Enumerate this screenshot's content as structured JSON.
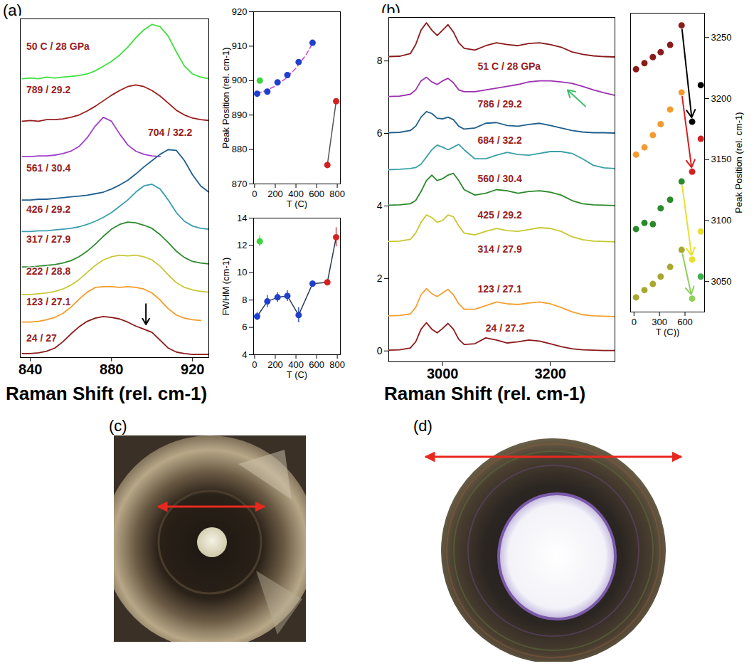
{
  "chart_data": [
    {
      "panel": "(a)",
      "type": "line",
      "x_label": "Raman Shift (rel. cm-1)",
      "x": [
        836,
        840,
        844,
        848,
        852,
        856,
        860,
        864,
        868,
        872,
        876,
        880,
        884,
        888,
        892,
        896,
        900,
        904,
        908,
        912,
        916,
        920,
        924,
        928
      ],
      "xlim": [
        835,
        928
      ],
      "xticks": [
        840,
        880,
        920
      ],
      "ylim": [
        0,
        43
      ],
      "tick_labels": "x",
      "series": [
        {
          "name": "50 C / 28 GPa",
          "color": "#3ee03e",
          "label_x": 838,
          "label_y": 39.5,
          "values": [
            35.4,
            35.5,
            35.4,
            35.6,
            35.5,
            35.6,
            35.7,
            35.8,
            36.0,
            36.4,
            37.0,
            37.6,
            38.4,
            39.4,
            40.6,
            41.6,
            42.3,
            42.0,
            40.8,
            38.8,
            37.0,
            36.0,
            35.6,
            35.4
          ]
        },
        {
          "name": "789 / 29.2",
          "color": "#9a1c1c",
          "label_x": 838,
          "label_y": 34,
          "values": [
            30.0,
            30.1,
            30.0,
            30.2,
            30.2,
            30.3,
            30.5,
            30.8,
            31.3,
            31.9,
            32.6,
            33.3,
            33.9,
            34.4,
            34.6,
            34.4,
            33.9,
            33.2,
            32.3,
            31.4,
            30.8,
            30.4,
            30.2,
            30.1
          ]
        },
        {
          "name": "704 / 32.2",
          "color": "#a040c8",
          "label_x": 898,
          "label_y": 28.5,
          "values": [
            25.5,
            25.5,
            25.6,
            25.6,
            25.7,
            25.9,
            26.2,
            26.8,
            27.9,
            29.4,
            30.5,
            30.0,
            28.4,
            27.0,
            26.2,
            25.8,
            25.6,
            25.5,
            null,
            null,
            null,
            null,
            null,
            null
          ]
        },
        {
          "name": "561 / 30.4",
          "color": "#1f5f8f",
          "label_x": 838,
          "label_y": 24,
          "values": [
            20.0,
            20.0,
            20.1,
            20.1,
            20.2,
            20.3,
            20.4,
            20.5,
            20.6,
            20.8,
            21.0,
            21.4,
            21.9,
            22.5,
            23.3,
            24.2,
            25.0,
            25.8,
            26.4,
            26.3,
            25.0,
            23.2,
            21.8,
            21.0
          ]
        },
        {
          "name": "426 / 29.2",
          "color": "#3a9fae",
          "label_x": 838,
          "label_y": 18.8,
          "values": [
            16.0,
            16.0,
            16.1,
            16.1,
            16.2,
            16.3,
            16.4,
            16.6,
            16.9,
            17.3,
            17.8,
            18.4,
            19.2,
            20.0,
            21.0,
            21.8,
            22.0,
            21.4,
            20.0,
            18.4,
            17.3,
            16.7,
            16.4,
            16.3
          ]
        },
        {
          "name": "317 / 27.9",
          "color": "#2e8b2e",
          "label_x": 838,
          "label_y": 15.0,
          "values": [
            11.5,
            11.5,
            11.6,
            11.7,
            11.8,
            12.0,
            12.3,
            12.8,
            13.5,
            14.4,
            15.4,
            16.3,
            16.9,
            17.2,
            17.1,
            16.8,
            16.4,
            15.6,
            14.6,
            13.5,
            12.7,
            12.2,
            12.0,
            11.9
          ]
        },
        {
          "name": "222 / 28.8",
          "color": "#c8c83a",
          "label_x": 838,
          "label_y": 10.9,
          "values": [
            8.0,
            8.0,
            8.1,
            8.2,
            8.4,
            8.7,
            9.2,
            9.9,
            10.8,
            11.7,
            12.4,
            12.8,
            13.0,
            12.9,
            13.0,
            12.8,
            12.4,
            11.6,
            10.5,
            9.5,
            8.9,
            8.6,
            8.4,
            8.3
          ]
        },
        {
          "name": "123 / 27.1",
          "color": "#f59a2a",
          "label_x": 838,
          "label_y": 7.0,
          "values": [
            4.5,
            4.5,
            4.6,
            4.8,
            5.1,
            5.6,
            6.4,
            7.4,
            8.3,
            8.9,
            9.0,
            9.0,
            8.9,
            9.0,
            8.9,
            8.7,
            8.2,
            7.3,
            6.2,
            5.4,
            5.0,
            4.8,
            4.7,
            null
          ]
        },
        {
          "name": "24 / 27",
          "color": "#8b1a1a",
          "label_x": 838,
          "label_y": 2.4,
          "values": [
            0.5,
            0.5,
            0.6,
            0.8,
            1.2,
            2.0,
            3.0,
            3.9,
            4.6,
            5.0,
            5.2,
            5.1,
            4.9,
            4.5,
            4.0,
            3.6,
            3.2,
            2.2,
            1.2,
            0.7,
            0.5,
            0.4,
            0.4,
            0.4
          ]
        }
      ],
      "annotations": [
        {
          "type": "arrow",
          "x1": 897,
          "y1": 6.8,
          "x2": 897,
          "y2": 4.2,
          "color": "#000000"
        }
      ]
    },
    {
      "panel": "(a)",
      "type": "scatter",
      "x_label": "T (C)",
      "y_label": "Peak Position (rel. cm-1)",
      "xlim": [
        -10,
        830
      ],
      "xticks": [
        0,
        200,
        400,
        600,
        800
      ],
      "ylim": [
        870,
        920
      ],
      "yticks": [
        870,
        880,
        890,
        900,
        910,
        920
      ],
      "series": [
        {
          "type": "line",
          "line_style": "dashed",
          "color": "#cc44cc",
          "x": [
            24,
            100,
            200,
            300,
            400,
            500,
            561
          ],
          "values": [
            896.3,
            897.0,
            898.4,
            900.6,
            903.6,
            907.6,
            910.8
          ]
        },
        {
          "type": "scatter",
          "marker": "circle",
          "color": "#1f3fcf",
          "x": [
            24,
            123,
            222,
            317,
            426,
            561
          ],
          "values": [
            896.2,
            896.8,
            899.5,
            901.6,
            905.4,
            911.0
          ]
        },
        {
          "type": "scatter",
          "marker": "circle",
          "color": "#3ed43e",
          "x": [
            50
          ],
          "values": [
            900
          ]
        },
        {
          "type": "line",
          "marker": "circle",
          "color": "#555555",
          "colors": [
            "#d42020",
            "#d42020"
          ],
          "x": [
            704,
            789
          ],
          "values": [
            875.5,
            894
          ]
        }
      ]
    },
    {
      "panel": "(a)",
      "type": "scatter",
      "x_label": "T (C)",
      "y_label": "FWHM (cm-1)",
      "xlim": [
        -10,
        830
      ],
      "xticks": [
        0,
        200,
        400,
        600,
        800
      ],
      "ylim": [
        4,
        14
      ],
      "yticks": [
        4,
        6,
        8,
        10,
        12,
        14
      ],
      "series": [
        {
          "type": "line",
          "marker": "circle",
          "color": "#2c3e50",
          "colors": [
            "#1f3fcf",
            "#1f3fcf",
            "#1f3fcf",
            "#1f3fcf",
            "#1f3fcf",
            "#1f3fcf",
            "#d42020",
            "#d42020"
          ],
          "x": [
            24,
            123,
            222,
            317,
            426,
            561,
            704,
            789
          ],
          "values": [
            6.8,
            7.9,
            8.2,
            8.3,
            6.9,
            9.2,
            9.3,
            12.6
          ],
          "errors": [
            0.3,
            0.45,
            0.35,
            0.4,
            0.55,
            0.2,
            0.15,
            0.7
          ]
        },
        {
          "type": "scatter",
          "marker": "circle",
          "color": "#3ed43e",
          "x": [
            50
          ],
          "values": [
            12.3
          ],
          "errors": [
            0.4
          ]
        }
      ]
    },
    {
      "panel": "(b)",
      "type": "line",
      "x_label": "Raman Shift (rel. cm-1)",
      "x": [
        2900,
        2920,
        2940,
        2950,
        2960,
        2970,
        2980,
        2990,
        3000,
        3010,
        3020,
        3030,
        3040,
        3060,
        3080,
        3100,
        3120,
        3140,
        3160,
        3180,
        3200,
        3220,
        3240,
        3260,
        3280,
        3300,
        3320
      ],
      "xlim": [
        2900,
        3320
      ],
      "xticks": [
        3000,
        3200
      ],
      "ylim": [
        -0.3,
        9.2
      ],
      "yticks": [
        0,
        2,
        4,
        6,
        8
      ],
      "series": [
        {
          "name": "51 C / 28 GPa",
          "color": "#8b1a1a",
          "label_x": 3065,
          "label_y": 7.85,
          "values": [
            8.12,
            8.13,
            8.2,
            8.45,
            8.85,
            9.05,
            8.85,
            8.7,
            8.85,
            9.0,
            8.8,
            8.5,
            8.35,
            8.3,
            8.42,
            8.5,
            8.45,
            8.42,
            8.48,
            8.5,
            8.45,
            8.38,
            8.25,
            8.18,
            8.14,
            8.12,
            8.11
          ]
        },
        {
          "name": "786 / 29.2",
          "color": "#9b30b0",
          "label_x": 3065,
          "label_y": 6.8,
          "values": [
            7.02,
            7.03,
            7.08,
            7.2,
            7.45,
            7.55,
            7.42,
            7.35,
            7.45,
            7.52,
            7.4,
            7.2,
            7.15,
            7.15,
            7.2,
            7.25,
            7.3,
            7.35,
            7.42,
            7.45,
            7.45,
            7.42,
            7.38,
            7.3,
            7.2,
            7.12,
            7.05
          ]
        },
        {
          "name": "684 / 32.2",
          "color": "#1f5f8b",
          "label_x": 3065,
          "label_y": 5.8,
          "values": [
            6.02,
            6.03,
            6.08,
            6.2,
            6.45,
            6.6,
            6.55,
            6.42,
            6.4,
            6.45,
            6.38,
            6.2,
            6.12,
            6.15,
            6.28,
            6.3,
            6.22,
            6.2,
            6.25,
            6.28,
            6.22,
            6.15,
            6.08,
            6.04,
            6.02,
            6.02,
            6.01
          ]
        },
        {
          "name": "560 / 30.4",
          "color": "#3aa0a8",
          "label_x": 3065,
          "label_y": 4.75,
          "values": [
            5.0,
            5.01,
            5.03,
            5.06,
            5.15,
            5.35,
            5.55,
            5.68,
            5.62,
            5.55,
            5.62,
            5.7,
            5.55,
            5.3,
            5.3,
            5.4,
            5.48,
            5.42,
            5.4,
            5.45,
            5.5,
            5.5,
            5.45,
            5.3,
            5.12,
            5.05,
            5.03
          ]
        },
        {
          "name": "425 / 29.2",
          "color": "#2a8a2a",
          "label_x": 3065,
          "label_y": 3.75,
          "values": [
            4.02,
            4.03,
            4.06,
            4.15,
            4.4,
            4.7,
            4.85,
            4.7,
            4.75,
            4.85,
            4.9,
            4.7,
            4.45,
            4.3,
            4.35,
            4.45,
            4.42,
            4.35,
            4.4,
            4.42,
            4.38,
            4.3,
            4.15,
            4.06,
            4.03,
            4.02,
            4.01
          ]
        },
        {
          "name": "314 / 27.9",
          "color": "#c8c832",
          "label_x": 3065,
          "label_y": 2.8,
          "values": [
            3.02,
            3.03,
            3.08,
            3.25,
            3.55,
            3.75,
            3.68,
            3.55,
            3.6,
            3.75,
            3.7,
            3.45,
            3.25,
            3.2,
            3.3,
            3.38,
            3.32,
            3.3,
            3.35,
            3.4,
            3.38,
            3.3,
            3.15,
            3.07,
            3.03,
            3.02,
            3.01
          ]
        },
        {
          "name": "123 / 27.1",
          "color": "#f5a030",
          "label_x": 3065,
          "label_y": 1.7,
          "values": [
            0.97,
            0.98,
            1.02,
            1.2,
            1.55,
            1.72,
            1.58,
            1.5,
            1.6,
            1.7,
            1.55,
            1.3,
            1.15,
            1.15,
            1.25,
            1.35,
            1.3,
            1.28,
            1.32,
            1.35,
            1.3,
            1.2,
            1.08,
            1.0,
            0.97,
            0.96,
            0.95
          ]
        },
        {
          "name": "24 / 27.2",
          "color": "#8b1a1a",
          "label_x": 3080,
          "label_y": 0.62,
          "values": [
            0.02,
            0.03,
            0.08,
            0.25,
            0.6,
            0.78,
            0.6,
            0.5,
            0.62,
            0.76,
            0.6,
            0.32,
            0.18,
            0.2,
            0.36,
            0.3,
            0.22,
            0.25,
            0.3,
            0.27,
            0.2,
            0.12,
            0.06,
            0.03,
            0.02,
            0.01,
            0.01
          ]
        }
      ],
      "annotations": [
        {
          "type": "arrow",
          "x1": 3265,
          "y1": 6.75,
          "x2": 3232,
          "y2": 7.2,
          "color": "#3cbf6a"
        }
      ]
    },
    {
      "panel": "(b)",
      "type": "scatter",
      "x_label": "T (C))",
      "y_label": "Peak Position (rel. cm-1)",
      "xlim": [
        -40,
        830
      ],
      "xticks": [
        0,
        300,
        600
      ],
      "ylim": [
        3025,
        3270
      ],
      "yticks": [
        3050,
        3100,
        3150,
        3200,
        3250
      ],
      "series": [
        {
          "type": "scatter",
          "marker": "circle",
          "color": "#8b1a1a",
          "colors": [
            "#8b1a1a",
            "#8b1a1a",
            "#8b1a1a",
            "#8b1a1a",
            "#8b1a1a",
            "#8b1a1a",
            "#000000",
            "#000000"
          ],
          "x": [
            24,
            123,
            222,
            314,
            425,
            560,
            684,
            786
          ],
          "values": [
            3224,
            3229,
            3234,
            3238,
            3244,
            3260,
            3181,
            3211
          ]
        },
        {
          "type": "scatter",
          "marker": "circle",
          "color": "#f59a30",
          "colors": [
            "#f59a30",
            "#f59a30",
            "#f59a30",
            "#f59a30",
            "#f59a30",
            "#f59a30",
            "#d42020",
            "#d42020"
          ],
          "x": [
            24,
            123,
            222,
            314,
            425,
            560,
            684,
            786
          ],
          "values": [
            3154,
            3160,
            3170,
            3179,
            3191,
            3205,
            3140,
            3167
          ]
        },
        {
          "type": "scatter",
          "marker": "circle",
          "color": "#2a8a2a",
          "colors": [
            "#2a8a2a",
            "#2a8a2a",
            "#2a8a2a",
            "#2a8a2a",
            "#2a8a2a",
            "#2a8a2a",
            "#e8e030",
            "#e8e030"
          ],
          "x": [
            24,
            123,
            222,
            314,
            425,
            560,
            684,
            786
          ],
          "values": [
            3093,
            3098,
            3097,
            3110,
            3117,
            3132,
            3068,
            3091
          ]
        },
        {
          "type": "scatter",
          "marker": "circle",
          "color": "#a8a830",
          "colors": [
            "#a8a830",
            "#a8a830",
            "#a8a830",
            "#a8a830",
            "#a8a830",
            "#a8a830",
            "#8fd05a",
            "#3cb04c"
          ],
          "x": [
            24,
            123,
            222,
            314,
            425,
            560,
            684,
            786
          ],
          "values": [
            3037,
            3043,
            3048,
            3054,
            3062,
            3076,
            3036,
            3054
          ]
        }
      ]
    }
  ],
  "photos": [
    {
      "panel": "(c)"
    },
    {
      "panel": "(d)"
    }
  ]
}
